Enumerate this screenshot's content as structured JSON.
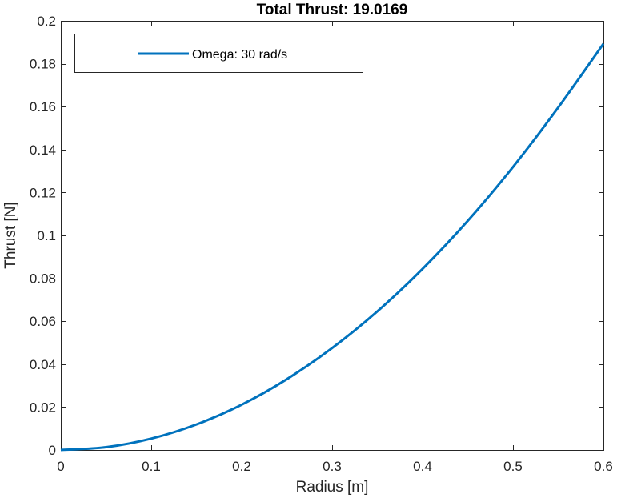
{
  "chart_data": {
    "type": "line",
    "title": "Total Thrust: 19.0169",
    "xlabel": "Radius [m]",
    "ylabel": "Thrust [N]",
    "xlim": [
      0,
      0.6
    ],
    "ylim": [
      0,
      0.2
    ],
    "xticks": [
      0,
      0.1,
      0.2,
      0.3,
      0.4,
      0.5,
      0.6
    ],
    "xtick_labels": [
      "0",
      "0.1",
      "0.2",
      "0.3",
      "0.4",
      "0.5",
      "0.6"
    ],
    "yticks": [
      0,
      0.02,
      0.04,
      0.06,
      0.08,
      0.1,
      0.12,
      0.14,
      0.16,
      0.18,
      0.2
    ],
    "ytick_labels": [
      "0",
      "0.02",
      "0.04",
      "0.06",
      "0.08",
      "0.1",
      "0.12",
      "0.14",
      "0.16",
      "0.18",
      "0.2"
    ],
    "grid": false,
    "legend_position": "top-left",
    "series": [
      {
        "name": "Omega: 30 rad/s",
        "color": "#0072BD",
        "x": [
          0,
          0.05,
          0.1,
          0.15,
          0.2,
          0.25,
          0.3,
          0.35,
          0.4,
          0.45,
          0.5,
          0.55,
          0.6
        ],
        "y": [
          0,
          0.0013,
          0.0053,
          0.0119,
          0.0211,
          0.033,
          0.0475,
          0.0646,
          0.0844,
          0.1068,
          0.1319,
          0.1596,
          0.1893
        ]
      }
    ]
  }
}
